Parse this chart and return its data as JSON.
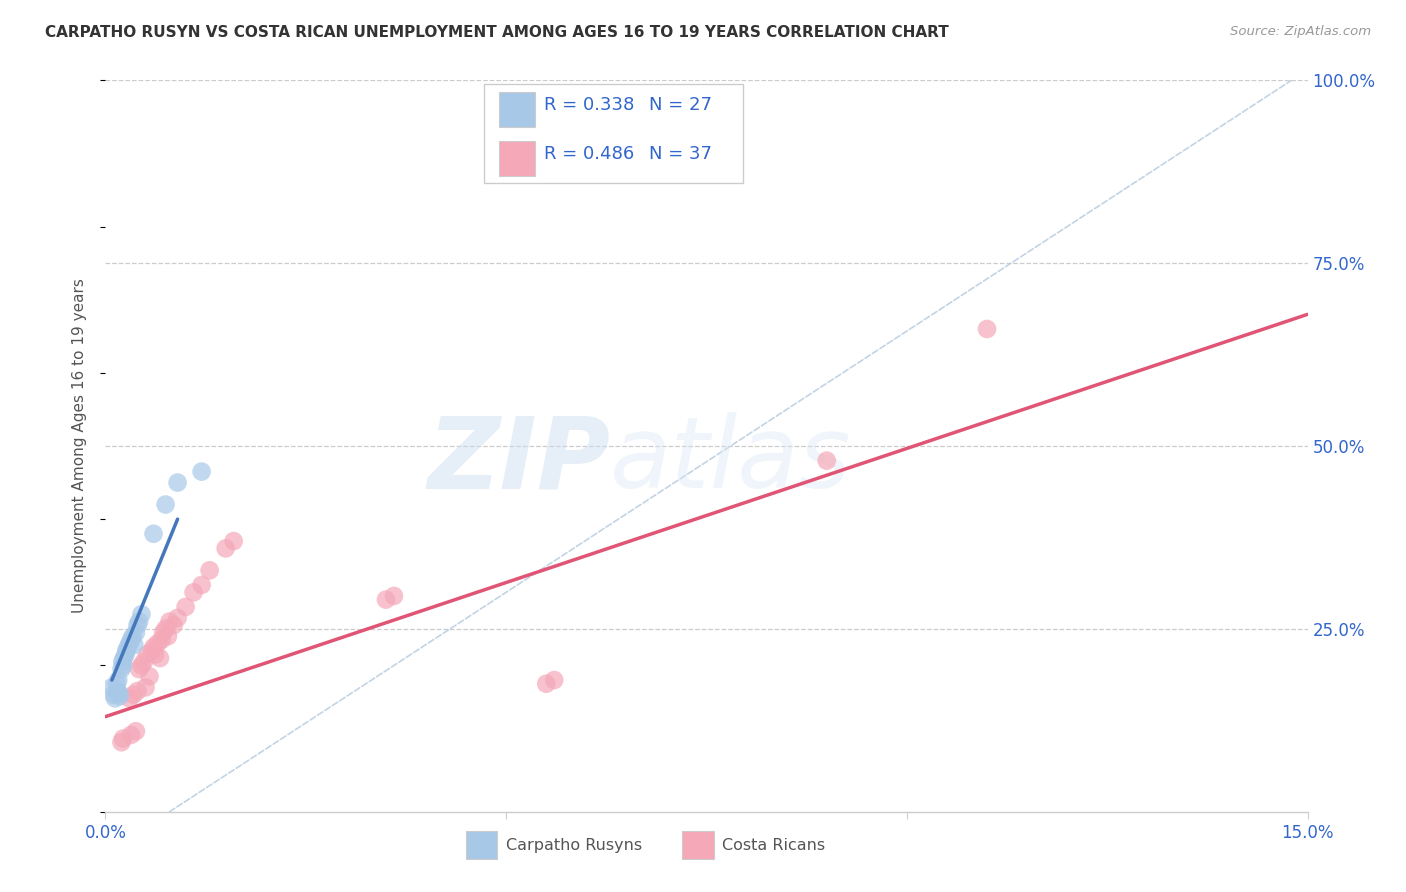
{
  "title": "CARPATHO RUSYN VS COSTA RICAN UNEMPLOYMENT AMONG AGES 16 TO 19 YEARS CORRELATION CHART",
  "source": "Source: ZipAtlas.com",
  "ylabel": "Unemployment Among Ages 16 to 19 years",
  "xlim": [
    0,
    0.15
  ],
  "ylim": [
    0,
    1.0
  ],
  "xtick_positions": [
    0.0,
    0.05,
    0.1,
    0.15
  ],
  "xticklabels": [
    "0.0%",
    "",
    "",
    "15.0%"
  ],
  "ytick_positions": [
    0.25,
    0.5,
    0.75,
    1.0
  ],
  "ytick_labels": [
    "25.0%",
    "50.0%",
    "75.0%",
    "100.0%"
  ],
  "watermark": "ZIPatlas",
  "legend_r1": "R = 0.338",
  "legend_n1": "N = 27",
  "legend_r2": "R = 0.486",
  "legend_n2": "N = 37",
  "color_blue": "#a8c8e8",
  "color_pink": "#f4a8b8",
  "color_blue_line": "#4477bb",
  "color_pink_line": "#e05575",
  "color_ref_line": "#b8cce0",
  "background_color": "#ffffff",
  "grid_color": "#cccccc",
  "blue_scatter_x": [
    0.0008,
    0.001,
    0.0012,
    0.0014,
    0.0015,
    0.0016,
    0.0017,
    0.0018,
    0.002,
    0.0021,
    0.0022,
    0.0023,
    0.0025,
    0.0026,
    0.0028,
    0.003,
    0.0032,
    0.0034,
    0.0036,
    0.0038,
    0.004,
    0.0042,
    0.0045,
    0.006,
    0.0075,
    0.009,
    0.012
  ],
  "blue_scatter_y": [
    0.17,
    0.16,
    0.155,
    0.175,
    0.165,
    0.18,
    0.162,
    0.158,
    0.195,
    0.205,
    0.2,
    0.21,
    0.215,
    0.22,
    0.225,
    0.23,
    0.235,
    0.24,
    0.228,
    0.245,
    0.255,
    0.26,
    0.27,
    0.38,
    0.42,
    0.45,
    0.465
  ],
  "pink_scatter_x": [
    0.002,
    0.0022,
    0.003,
    0.0032,
    0.0035,
    0.0038,
    0.004,
    0.0042,
    0.0045,
    0.0048,
    0.005,
    0.0052,
    0.0055,
    0.0058,
    0.006,
    0.0062,
    0.0065,
    0.0068,
    0.007,
    0.0072,
    0.0075,
    0.0078,
    0.008,
    0.0085,
    0.009,
    0.01,
    0.011,
    0.012,
    0.013,
    0.015,
    0.016,
    0.035,
    0.036,
    0.055,
    0.056,
    0.09,
    0.11
  ],
  "pink_scatter_y": [
    0.095,
    0.1,
    0.155,
    0.105,
    0.16,
    0.11,
    0.165,
    0.195,
    0.2,
    0.205,
    0.17,
    0.215,
    0.185,
    0.22,
    0.225,
    0.215,
    0.23,
    0.21,
    0.235,
    0.245,
    0.25,
    0.24,
    0.26,
    0.255,
    0.265,
    0.28,
    0.3,
    0.31,
    0.33,
    0.36,
    0.37,
    0.29,
    0.295,
    0.175,
    0.18,
    0.48,
    0.66
  ],
  "blue_line_x": [
    0.0008,
    0.009
  ],
  "blue_line_y": [
    0.18,
    0.4
  ],
  "pink_line_x": [
    0.0,
    0.15
  ],
  "pink_line_y": [
    0.13,
    0.68
  ]
}
